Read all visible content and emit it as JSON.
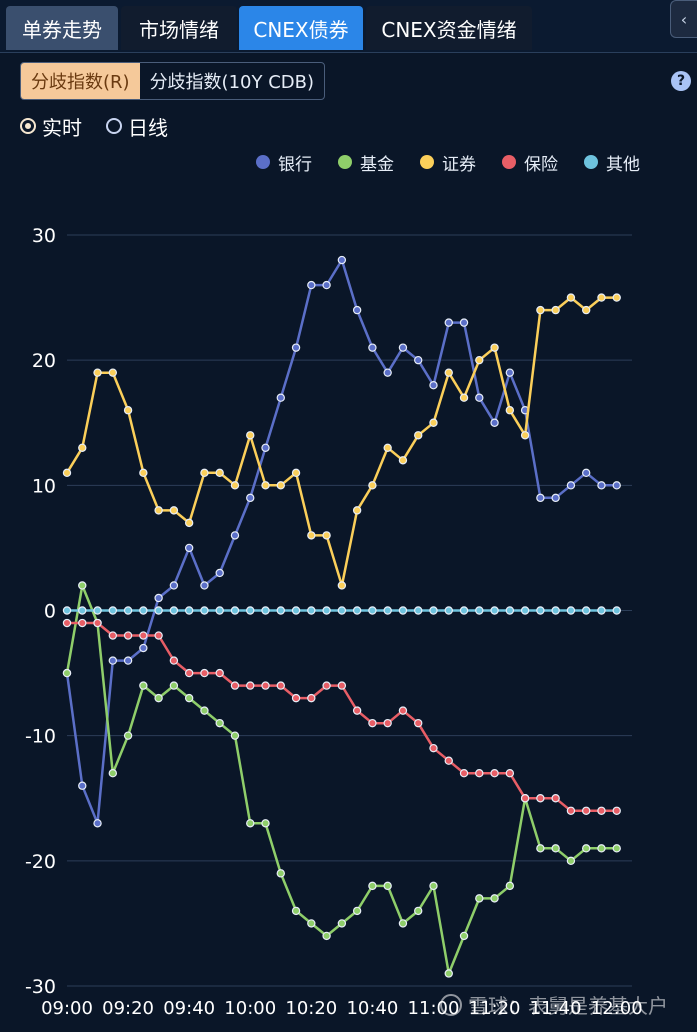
{
  "tabs": [
    {
      "label": "单券走势",
      "active": false
    },
    {
      "label": "市场情绪",
      "active": false
    },
    {
      "label": "CNEX债券",
      "active": true
    },
    {
      "label": "CNEX资金情绪",
      "active": false
    }
  ],
  "collapse_icon": "chevron-left-icon",
  "subtabs": [
    {
      "label": "分歧指数(R)",
      "active": true
    },
    {
      "label": "分歧指数(10Y CDB)",
      "active": false
    }
  ],
  "help_label": "?",
  "radios": [
    {
      "label": "实时",
      "selected": true
    },
    {
      "label": "日线",
      "selected": false
    }
  ],
  "watermark": "雪球：表舅是养基大户",
  "colors": {
    "银行": "#5b6fc8",
    "基金": "#8fce6a",
    "证券": "#fbcf5a",
    "保险": "#e85e66",
    "其他": "#6ec3de"
  },
  "chart_data": {
    "type": "line",
    "x": [
      "09:00",
      "09:05",
      "09:10",
      "09:15",
      "09:20",
      "09:25",
      "09:30",
      "09:35",
      "09:40",
      "09:45",
      "09:50",
      "09:55",
      "10:00",
      "10:05",
      "10:10",
      "10:15",
      "10:20",
      "10:25",
      "10:30",
      "10:35",
      "10:40",
      "10:45",
      "10:50",
      "10:55",
      "11:00",
      "11:05",
      "11:10",
      "11:15",
      "11:20",
      "11:25",
      "11:30",
      "11:35",
      "11:40",
      "11:45",
      "11:50",
      "11:55",
      "12:00",
      "12:05"
    ],
    "xticks": [
      "09:00",
      "09:20",
      "09:40",
      "10:00",
      "10:20",
      "10:40",
      "11:00",
      "11:20",
      "11:40",
      "12:00"
    ],
    "ylim": [
      -30,
      30
    ],
    "yticks": [
      30,
      20,
      10,
      0,
      -10,
      -20,
      -30
    ],
    "grid": true,
    "legend_position": "top-right",
    "series": [
      {
        "name": "银行",
        "values": [
          -5,
          -14,
          -17,
          -4,
          -4,
          -3,
          1,
          2,
          5,
          2,
          3,
          6,
          9,
          13,
          17,
          21,
          26,
          26,
          28,
          24,
          21,
          19,
          21,
          20,
          18,
          23,
          23,
          17,
          15,
          19,
          16,
          9,
          9,
          10,
          11,
          10,
          10,
          null
        ]
      },
      {
        "name": "基金",
        "values": [
          -5,
          2,
          -1,
          -13,
          -10,
          -6,
          -7,
          -6,
          -7,
          -8,
          -9,
          -10,
          -17,
          -17,
          -21,
          -24,
          -25,
          -26,
          -25,
          -24,
          -22,
          -22,
          -25,
          -24,
          -22,
          -29,
          -26,
          -23,
          -23,
          -22,
          -15,
          -19,
          -19,
          -20,
          -19,
          -19,
          -19,
          null
        ]
      },
      {
        "name": "证券",
        "values": [
          11,
          13,
          19,
          19,
          16,
          11,
          8,
          8,
          7,
          11,
          11,
          10,
          14,
          10,
          10,
          11,
          6,
          6,
          2,
          8,
          10,
          13,
          12,
          14,
          15,
          19,
          17,
          20,
          21,
          16,
          14,
          24,
          24,
          25,
          24,
          25,
          25,
          null
        ]
      },
      {
        "name": "保险",
        "values": [
          -1,
          -1,
          -1,
          -2,
          -2,
          -2,
          -2,
          -4,
          -5,
          -5,
          -5,
          -6,
          -6,
          -6,
          -6,
          -7,
          -7,
          -6,
          -6,
          -8,
          -9,
          -9,
          -8,
          -9,
          -11,
          -12,
          -13,
          -13,
          -13,
          -13,
          -15,
          -15,
          -15,
          -16,
          -16,
          -16,
          -16,
          null
        ]
      },
      {
        "name": "其他",
        "values": [
          0,
          0,
          0,
          0,
          0,
          0,
          0,
          0,
          0,
          0,
          0,
          0,
          0,
          0,
          0,
          0,
          0,
          0,
          0,
          0,
          0,
          0,
          0,
          0,
          0,
          0,
          0,
          0,
          0,
          0,
          0,
          0,
          0,
          0,
          0,
          0,
          0,
          null
        ]
      }
    ]
  }
}
